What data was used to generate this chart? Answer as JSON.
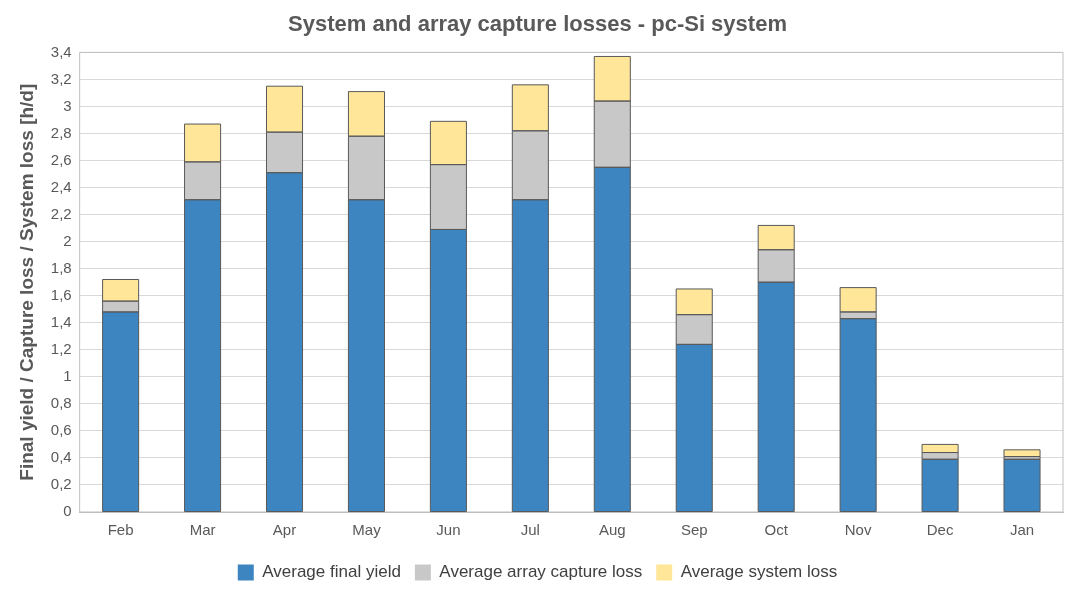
{
  "chart_data": {
    "type": "bar",
    "title": "System and array capture losses - pc-Si system",
    "ylabel": "Final yield / Capture loss / System loss [h/d]",
    "categories": [
      "Feb",
      "Mar",
      "Apr",
      "May",
      "Jun",
      "Jul",
      "Aug",
      "Sep",
      "Oct",
      "Nov",
      "Dec",
      "Jan"
    ],
    "stacked": true,
    "series": [
      {
        "name": "Average final yield",
        "color": "#3d85c0",
        "values": [
          1.48,
          2.31,
          2.51,
          2.31,
          2.09,
          2.31,
          2.55,
          1.24,
          1.7,
          1.43,
          0.39,
          0.39
        ]
      },
      {
        "name": "Average array capture loss",
        "color": "#c8c8c8",
        "values": [
          0.08,
          0.28,
          0.3,
          0.47,
          0.48,
          0.51,
          0.49,
          0.22,
          0.24,
          0.05,
          0.05,
          0.02
        ]
      },
      {
        "name": "Average system loss",
        "color": "#ffe699",
        "values": [
          0.16,
          0.28,
          0.34,
          0.33,
          0.32,
          0.34,
          0.33,
          0.19,
          0.18,
          0.18,
          0.06,
          0.05
        ]
      }
    ],
    "ylim": [
      0,
      3.4
    ],
    "yticks": [
      0,
      {
        "value": 0.2,
        "label": "0,2"
      },
      {
        "value": 0.4,
        "label": "0,4"
      },
      {
        "value": 0.6,
        "label": "0,6"
      },
      {
        "value": 0.8,
        "label": "0,8"
      },
      1,
      {
        "value": 1.2,
        "label": "1,2"
      },
      {
        "value": 1.4,
        "label": "1,4"
      },
      {
        "value": 1.6,
        "label": "1,6"
      },
      {
        "value": 1.8,
        "label": "1,8"
      },
      2,
      {
        "value": 2.2,
        "label": "2,2"
      },
      {
        "value": 2.4,
        "label": "2,4"
      },
      {
        "value": 2.6,
        "label": "2,6"
      },
      {
        "value": 2.8,
        "label": "2,8"
      },
      3,
      {
        "value": 3.2,
        "label": "3,2"
      },
      {
        "value": 3.4,
        "label": "3,4"
      }
    ],
    "grid": "y",
    "legend": "bottom"
  }
}
